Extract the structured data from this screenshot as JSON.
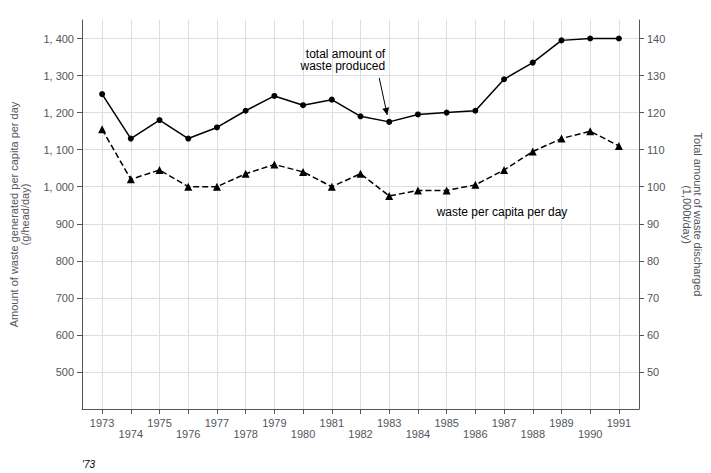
{
  "chart_data": {
    "type": "line",
    "x": [
      1973,
      1974,
      1975,
      1976,
      1977,
      1978,
      1979,
      1980,
      1981,
      1982,
      1983,
      1984,
      1985,
      1986,
      1987,
      1988,
      1989,
      1990,
      1991
    ],
    "series": [
      {
        "values": [
          1250,
          1130,
          1180,
          1130,
          1160,
          1205,
          1245,
          1220,
          1235,
          1190,
          1175,
          1195,
          1200,
          1205,
          1290,
          1335,
          1395,
          1400,
          1400
        ],
        "color": "#000000",
        "line_style": "solid",
        "marker": "circle"
      },
      {
        "values": [
          1155,
          1020,
          1045,
          1000,
          1000,
          1035,
          1060,
          1040,
          1000,
          1035,
          975,
          990,
          990,
          1005,
          1045,
          1095,
          1130,
          1150,
          1110
        ],
        "color": "#000000",
        "line_style": "dashed",
        "marker": "triangle"
      }
    ],
    "xlim": [
      1972.3,
      1991.7
    ],
    "xticks": [
      1973,
      1974,
      1975,
      1976,
      1977,
      1978,
      1979,
      1980,
      1981,
      1982,
      1983,
      1984,
      1985,
      1986,
      1987,
      1988,
      1989,
      1990,
      1991
    ],
    "ylim": [
      400,
      1450
    ],
    "yticks": [
      500,
      600,
      700,
      800,
      900,
      {
        "value": 1000,
        "label": "1, 000"
      },
      {
        "value": 1100,
        "label": "1, 100"
      },
      {
        "value": 1200,
        "label": "1, 200"
      },
      {
        "value": 1300,
        "label": "1, 300"
      },
      {
        "value": 1400,
        "label": "1, 400"
      }
    ],
    "y2lim": [
      40,
      145
    ],
    "y2ticks": [
      50,
      60,
      70,
      80,
      90,
      100,
      110,
      120,
      130,
      140
    ],
    "ylabel": "Amount of waste generated per capita per day\n(g/head/day)",
    "y2label": "Total amount of waste discharged\n(1,000t/day)",
    "grid": true,
    "annotations": [
      "total amount of\nwaste produced",
      "waste per capita per day",
      "'73"
    ]
  }
}
